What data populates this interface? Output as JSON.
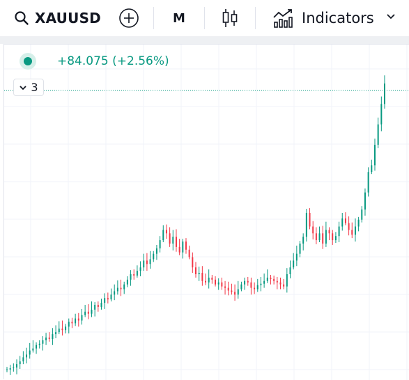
{
  "toolbar": {
    "symbol": "XAUUSD",
    "interval": "M",
    "indicators_label": "Indicators",
    "icons": [
      "search-icon",
      "add-symbol-icon",
      "candlestick-icon",
      "indicators-chart-icon",
      "chevron-down-icon"
    ]
  },
  "legend": {
    "change_text": "+84.075 (+2.56%)",
    "indicator_count": "3"
  },
  "colors": {
    "up": "#089981",
    "down": "#f23645",
    "grid": "#f0f3fa",
    "price_line": "#089981"
  },
  "chart_data": {
    "type": "candlestick",
    "series_shape": [
      0,
      2,
      3,
      8,
      12,
      18,
      22,
      28,
      31,
      36,
      38,
      43,
      47,
      45,
      52,
      55,
      60,
      58,
      63,
      70,
      68,
      75,
      72,
      80,
      85,
      82,
      88,
      95,
      92,
      98,
      105,
      103,
      110,
      115,
      120,
      118,
      125,
      132,
      140,
      138,
      145,
      150,
      160,
      155,
      162,
      170,
      178,
      190,
      205,
      200,
      185,
      195,
      180,
      172,
      188,
      176,
      165,
      150,
      140,
      142,
      130,
      128,
      135,
      132,
      125,
      128,
      122,
      120,
      116,
      114,
      110,
      118,
      125,
      130,
      128,
      120,
      118,
      124,
      126,
      130,
      135,
      133,
      130,
      128,
      125,
      122,
      140,
      150,
      160,
      170,
      185,
      195,
      230,
      210,
      200,
      190,
      200,
      185,
      205,
      200,
      190,
      196,
      210,
      222,
      215,
      205,
      198,
      210,
      220,
      235,
      260,
      290,
      300,
      330,
      360,
      390,
      420
    ]
  }
}
